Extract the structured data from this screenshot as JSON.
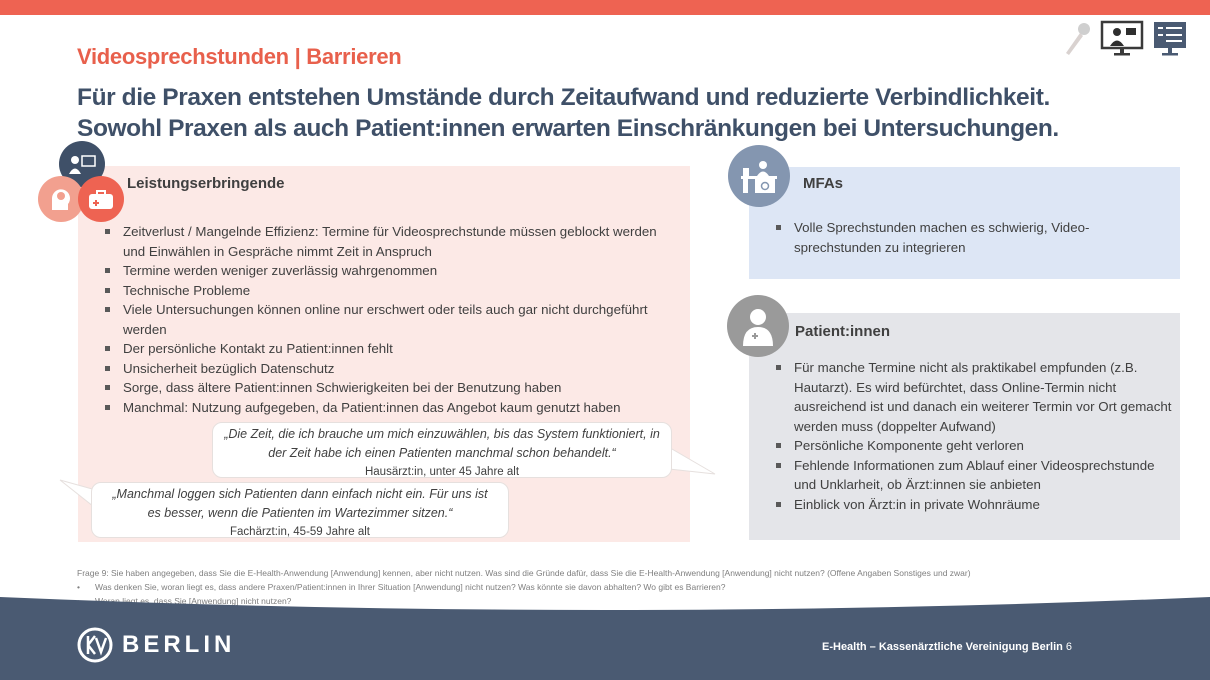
{
  "title": "Videosprechstunden | Barrieren",
  "headline": [
    "Für die Praxen entstehen Umstände durch Zeitaufwand und reduzierte Verbindlichkeit.",
    "Sowohl Praxen als auch Patient:innen erwarten Einschränkungen bei Untersuchungen."
  ],
  "top_icons": [
    "microphone-icon",
    "video-call-icon",
    "survey-monitor-icon"
  ],
  "leistungserbringende": {
    "title": "Leistungserbringende",
    "items": [
      "Zeitverlust / Mangelnde Effizienz: Termine für Videosprechstunde müssen geblockt werden und Einwählen in Gespräche nimmt Zeit in Anspruch",
      "Termine werden weniger zuverlässig wahrgenommen",
      "Technische Probleme",
      "Viele Untersuchungen können online nur erschwert oder teils auch gar nicht durchgeführt werden",
      "Der persönliche Kontakt zu Patient:innen fehlt",
      "Unsicherheit bezüglich Datenschutz",
      "Sorge, dass ältere Patient:innen Schwierigkeiten bei der Benutzung haben",
      "Manchmal: Nutzung aufgegeben, da Patient:innen das Angebot kaum genutzt haben"
    ],
    "quotes": [
      {
        "text": "„Die Zeit, die ich brauche um mich einzuwählen, bis das System funktioniert, in der Zeit habe ich einen Patienten manchmal schon behandelt.“",
        "source": "Hausärzt:in, unter 45 Jahre alt"
      },
      {
        "text": "„Manchmal loggen sich Patienten dann einfach nicht ein. Für uns ist es besser, wenn die Patienten im Wartezimmer sitzen.“",
        "source": "Fachärzt:in, 45-59 Jahre alt"
      }
    ]
  },
  "mfas": {
    "title": "MFAs",
    "items": [
      "Volle Sprechstunden machen es schwierig, Video-sprechstunden zu integrieren"
    ]
  },
  "patienten": {
    "title": "Patient:innen",
    "items": [
      "Für manche Termine nicht als praktikabel empfunden (z.B. Hautarzt). Es wird befürchtet, dass Online-Termin nicht ausreichend ist und danach ein weiterer Termin vor Ort gemacht werden muss (doppelter Aufwand)",
      "Persönliche Komponente geht verloren",
      "Fehlende Informationen zum Ablauf einer Videosprechstunde und Unklarheit, ob Ärzt:innen sie anbieten",
      "Einblick von Ärzt:in in private Wohnräume"
    ]
  },
  "footnote": {
    "question": "Frage 9: Sie haben angegeben, dass Sie die E-Health-Anwendung [Anwendung] kennen, aber nicht nutzen. Was sind die Gründe dafür, dass Sie die E-Health-Anwendung [Anwendung] nicht nutzen? (Offene Angaben Sonstiges und zwar)",
    "bullets": [
      "Was denken Sie, woran liegt es, dass andere Praxen/Patient:innen in Ihrer Situation [Anwendung] nicht nutzen? Was könnte sie davon abhalten? Wo gibt es Barrieren?",
      "Woran liegt es, dass Sie [Anwendung] nicht nutzen?"
    ]
  },
  "footer": {
    "logo_mark": "KV",
    "logo_text": "BERLIN",
    "text": "E-Health – Kassenärztliche Vereinigung Berlin",
    "page": "6"
  },
  "colors": {
    "accent": "#ee6352",
    "headline": "#3f5068",
    "footer": "#4a5a72",
    "pink_box": "#fce9e6",
    "blue_box": "#dde6f5",
    "grey_box": "#e4e5e9"
  }
}
